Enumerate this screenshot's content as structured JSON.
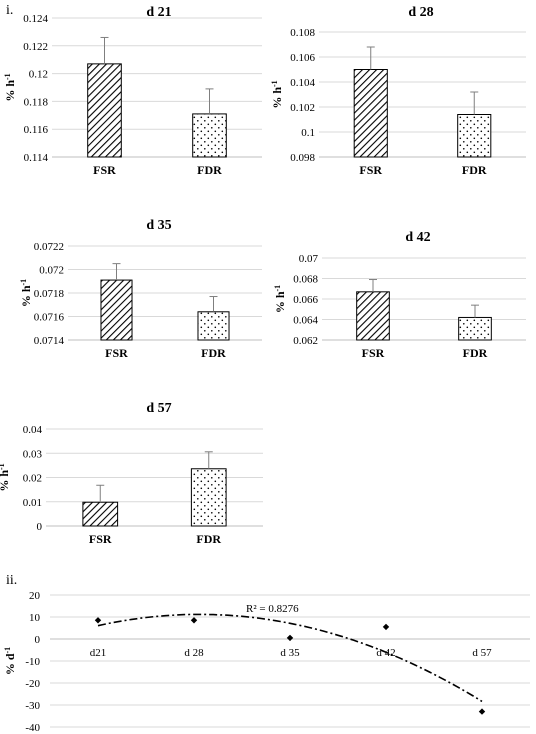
{
  "labels": {
    "panel_i": "i.",
    "panel_ii": "ii."
  },
  "chart_data": [
    {
      "type": "bar",
      "title": "d 21",
      "ylabel": "% h-1",
      "categories": [
        "FSR",
        "FDR"
      ],
      "values": [
        0.1207,
        0.1171
      ],
      "errors": [
        0.0019,
        0.0018
      ],
      "ylim": [
        0.114,
        0.124
      ],
      "yticks": [
        0.114,
        0.116,
        0.118,
        0.12,
        0.122,
        0.124
      ],
      "ytick_labels": [
        "0.114",
        "0.116",
        "0.118",
        "0.12",
        "0.122",
        "0.124"
      ],
      "patterns": [
        "diagonal-hatch",
        "dots"
      ],
      "grid": true
    },
    {
      "type": "bar",
      "title": "d 28",
      "ylabel": "% h-1",
      "categories": [
        "FSR",
        "FDR"
      ],
      "values": [
        0.105,
        0.1014
      ],
      "errors": [
        0.0018,
        0.0018
      ],
      "ylim": [
        0.098,
        0.108
      ],
      "yticks": [
        0.098,
        0.1,
        0.102,
        0.104,
        0.106,
        0.108
      ],
      "ytick_labels": [
        "0.098",
        "0.1",
        "0.102",
        "0.104",
        "0.106",
        "0.108"
      ],
      "patterns": [
        "diagonal-hatch",
        "dots"
      ],
      "grid": true
    },
    {
      "type": "bar",
      "title": "d 35",
      "ylabel": "% h-1",
      "categories": [
        "FSR",
        "FDR"
      ],
      "values": [
        0.07191,
        0.07164
      ],
      "errors": [
        0.00014,
        0.00013
      ],
      "ylim": [
        0.0714,
        0.0722
      ],
      "yticks": [
        0.0714,
        0.0716,
        0.0718,
        0.072,
        0.0722
      ],
      "ytick_labels": [
        "0.0714",
        "0.0716",
        "0.0718",
        "0.072",
        "0.0722"
      ],
      "patterns": [
        "diagonal-hatch",
        "dots"
      ],
      "grid": true
    },
    {
      "type": "bar",
      "title": "d 42",
      "ylabel": "% h-1",
      "categories": [
        "FSR",
        "FDR"
      ],
      "values": [
        0.0667,
        0.0642
      ],
      "errors": [
        0.0012,
        0.0012
      ],
      "ylim": [
        0.062,
        0.07
      ],
      "yticks": [
        0.062,
        0.064,
        0.066,
        0.068,
        0.07
      ],
      "ytick_labels": [
        "0.062",
        "0.064",
        "0.066",
        "0.068",
        "0.07"
      ],
      "patterns": [
        "diagonal-hatch",
        "dots"
      ],
      "grid": true
    },
    {
      "type": "bar",
      "title": "d 57",
      "ylabel": "% h-1",
      "categories": [
        "FSR",
        "FDR"
      ],
      "values": [
        0.0098,
        0.0236
      ],
      "errors": [
        0.007,
        0.007
      ],
      "ylim": [
        0,
        0.04
      ],
      "yticks": [
        0,
        0.01,
        0.02,
        0.03,
        0.04
      ],
      "ytick_labels": [
        "0",
        "0.01",
        "0.02",
        "0.03",
        "0.04"
      ],
      "patterns": [
        "diagonal-hatch",
        "dots"
      ],
      "grid": true
    },
    {
      "type": "scatter",
      "ylabel": "% d-1",
      "categories": [
        "d21",
        "d 28",
        "d 35",
        "d 42",
        "d 57"
      ],
      "values": [
        8.5,
        8.5,
        0.5,
        5.5,
        -33
      ],
      "ylim": [
        -40,
        20
      ],
      "yticks": [
        -40,
        -30,
        -20,
        -10,
        0,
        10,
        20
      ],
      "ytick_labels": [
        "-40",
        "-30",
        "-20",
        "-10",
        "0",
        "10",
        "20"
      ],
      "trendline": {
        "type": "polynomial",
        "order": 2,
        "style": "dash-dot",
        "r2_label": "R² = 0.8276"
      },
      "grid": true
    }
  ]
}
